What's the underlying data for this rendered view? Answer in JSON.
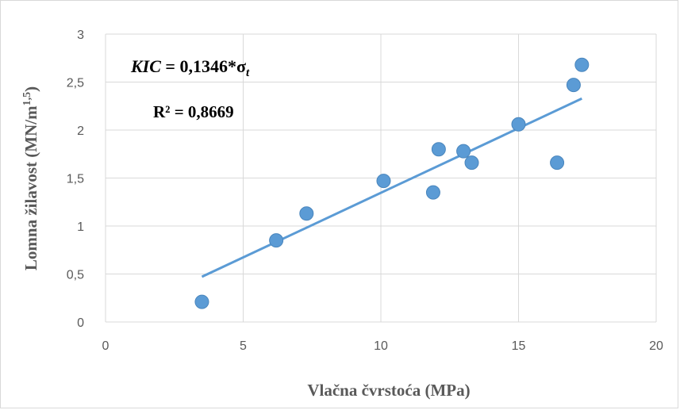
{
  "chart_data": {
    "type": "scatter",
    "xlabel": "Vlačna čvrstoća (MPa)",
    "ylabel": "Lomna žilavost (MN/m1,5)",
    "ylabel_main": "Lomna žilavost (MN/m",
    "ylabel_sup": "1,5",
    "ylabel_end": ")",
    "xlim": [
      0,
      20
    ],
    "ylim": [
      0,
      3
    ],
    "x_ticks": [
      0,
      5,
      10,
      15,
      20
    ],
    "y_ticks": [
      0,
      0.5,
      1,
      1.5,
      2,
      2.5,
      3
    ],
    "x_tick_labels": [
      "0",
      "5",
      "10",
      "15",
      "20"
    ],
    "y_tick_labels": [
      "0",
      "0,5",
      "1",
      "1,5",
      "2",
      "2,5",
      "3"
    ],
    "grid": "vertical and horizontal",
    "points": [
      {
        "x": 3.5,
        "y": 0.21
      },
      {
        "x": 6.2,
        "y": 0.85
      },
      {
        "x": 7.3,
        "y": 1.13
      },
      {
        "x": 10.1,
        "y": 1.47
      },
      {
        "x": 11.9,
        "y": 1.35
      },
      {
        "x": 12.1,
        "y": 1.8
      },
      {
        "x": 13.0,
        "y": 1.78
      },
      {
        "x": 13.3,
        "y": 1.66
      },
      {
        "x": 15.0,
        "y": 2.06
      },
      {
        "x": 16.4,
        "y": 1.66
      },
      {
        "x": 17.0,
        "y": 2.47
      },
      {
        "x": 17.3,
        "y": 2.68
      }
    ],
    "trendline": {
      "type": "linear",
      "slope": 0.1346,
      "intercept": 0,
      "x_start": 3.5,
      "x_end": 17.3
    },
    "annotations": {
      "equation_lhs": "KIC",
      "equation_rhs": " = 0,1346*σ",
      "equation_sub": "t",
      "r_squared": "R² = 0,8669"
    },
    "colors": {
      "marker": "#5b9bd5",
      "trendline": "#5b9bd5",
      "grid": "#d9d9d9"
    }
  }
}
